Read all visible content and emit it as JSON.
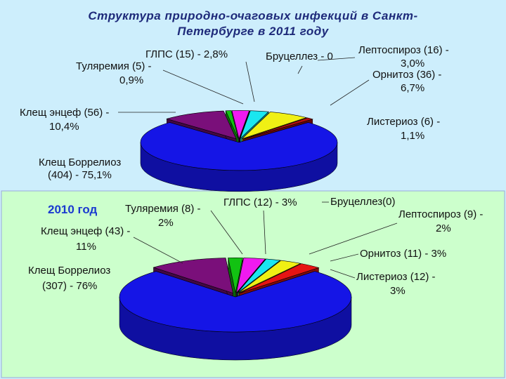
{
  "chart_data": [
    {
      "type": "pie",
      "title": [
        "Структура природно-очаговых инфекций в Санкт-",
        "Петербурге в 2011 году"
      ],
      "categories": [
        [
          "Клещ Боррелиоз",
          "(404) - 75,1%"
        ],
        [
          "Клещ энцеф (56) -",
          "10,4%"
        ],
        [
          "Туляремия (5) -",
          "0,9%"
        ],
        [
          "ГЛПС (15) - 2,8%"
        ],
        [
          "Бруцеллез - 0"
        ],
        [
          "Лептоспироз (16) -",
          "3,0%"
        ],
        [
          "Орнитоз (36) -",
          "6,7%"
        ],
        [
          "Листериоз (6) -",
          "1,1%"
        ]
      ],
      "values": [
        75.1,
        10.4,
        0.9,
        2.8,
        0,
        3.0,
        6.7,
        1.1
      ],
      "colors": [
        "#1515e6",
        "#7a0f7a",
        "#12c212",
        "#f01af0",
        "#111111",
        "#1ae6f0",
        "#f0f014",
        "#b40f0f"
      ]
    },
    {
      "type": "pie",
      "title": [
        "2010 год"
      ],
      "categories": [
        [
          "Клещ Боррелиоз",
          "(307) - 76%"
        ],
        [
          "Клещ энцеф (43) -",
          "11%"
        ],
        [
          "Туляремия (8) -",
          "2%"
        ],
        [
          "ГЛПС (12) - 3%"
        ],
        [
          "Бруцеллез(0)"
        ],
        [
          "Лептоспироз (9) -",
          "2%"
        ],
        [
          "Орнитоз (11) - 3%"
        ],
        [
          "Листериоз (12) -",
          "3%"
        ]
      ],
      "values": [
        76,
        11,
        2,
        3,
        0,
        2,
        3,
        3
      ],
      "colors": [
        "#1515e6",
        "#7a0f7a",
        "#12c212",
        "#f01af0",
        "#111111",
        "#1ae6f0",
        "#f0f014",
        "#e61414"
      ]
    }
  ]
}
